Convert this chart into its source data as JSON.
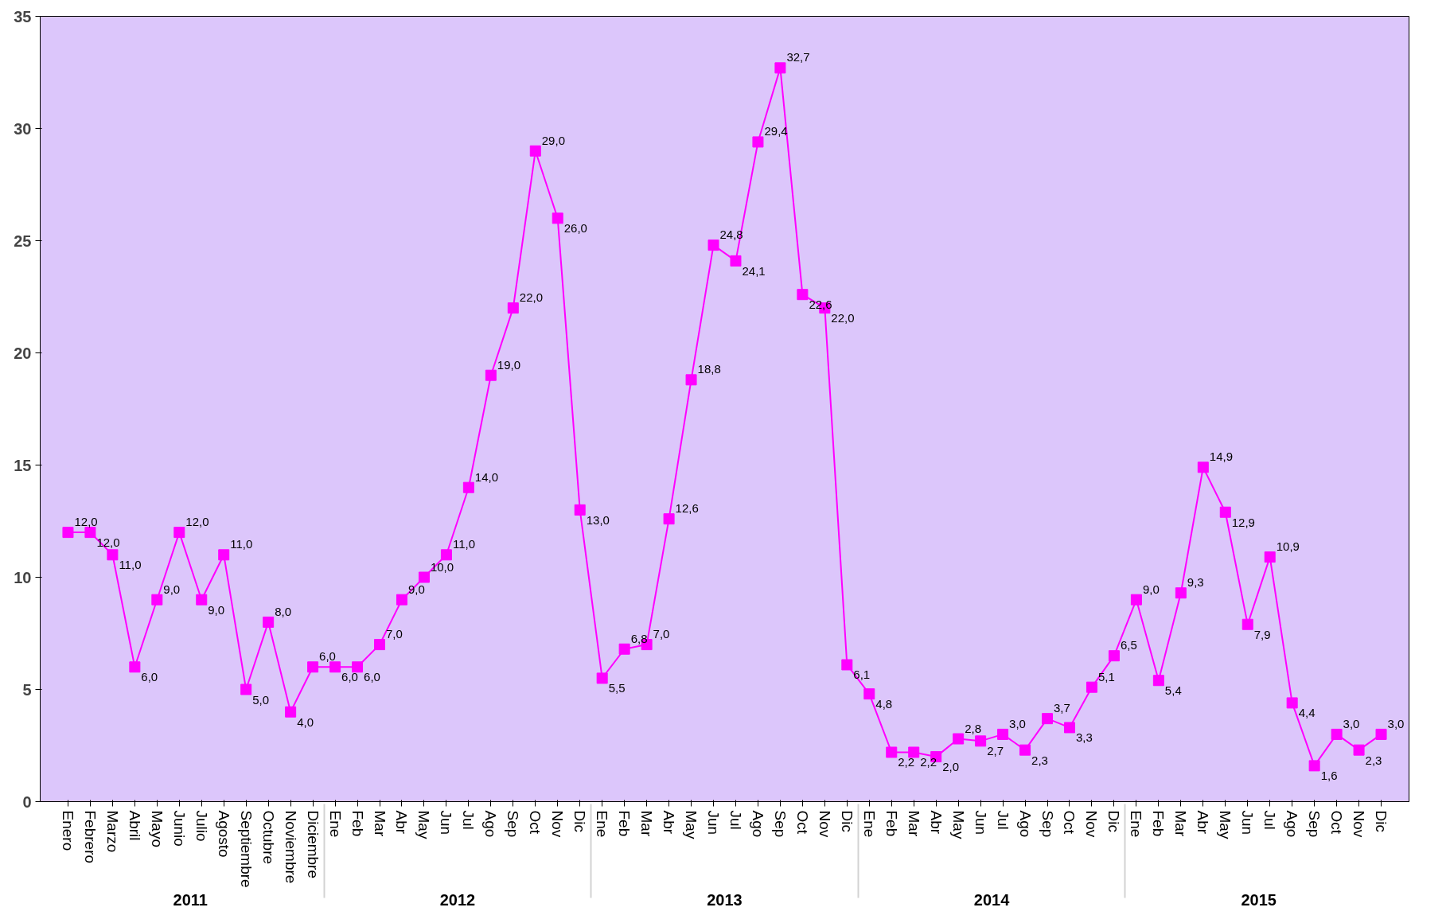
{
  "chart_data": {
    "type": "line",
    "categories": [
      "Enero",
      "Febrero",
      "Marzo",
      "Abril",
      "Mayo",
      "Junio",
      "Julio",
      "Agosto",
      "Septiembre",
      "Octubre",
      "Noviembre",
      "Diciembre",
      "Ene",
      "Feb",
      "Mar",
      "Abr",
      "May",
      "Jun",
      "Jul",
      "Ago",
      "Sep",
      "Oct",
      "Nov",
      "Dic",
      "Ene",
      "Feb",
      "Mar",
      "Abr",
      "May",
      "Jun",
      "Jul",
      "Ago",
      "Sep",
      "Oct",
      "Nov",
      "Dic",
      "Ene",
      "Feb",
      "Mar",
      "Abr",
      "May",
      "Jun",
      "Jul",
      "Ago",
      "Sep",
      "Oct",
      "Nov",
      "Dic",
      "Ene",
      "Feb",
      "Mar",
      "Abr",
      "May",
      "Jun",
      "Jul",
      "Ago",
      "Sep",
      "Oct",
      "Nov",
      "Dic"
    ],
    "series": [
      {
        "color": "#ff00ff",
        "values": [
          12.0,
          12.0,
          11.0,
          6.0,
          9.0,
          12.0,
          9.0,
          11.0,
          5.0,
          8.0,
          4.0,
          6.0,
          6.0,
          6.0,
          7.0,
          9.0,
          10.0,
          11.0,
          14.0,
          19.0,
          22.0,
          29.0,
          26.0,
          13.0,
          5.5,
          6.8,
          7.0,
          12.6,
          18.8,
          24.8,
          24.1,
          29.4,
          32.7,
          22.6,
          22.0,
          6.1,
          4.8,
          2.2,
          2.2,
          2.0,
          2.8,
          2.7,
          3.0,
          2.3,
          3.7,
          3.3,
          5.1,
          6.5,
          9.0,
          5.4,
          9.3,
          14.9,
          12.9,
          7.9,
          10.9,
          4.4,
          1.6,
          3.0,
          2.3,
          3.0
        ],
        "value_labels": [
          "12,0",
          "12,0",
          "11,0",
          "6,0",
          "9,0",
          "12,0",
          "9,0",
          "11,0",
          "5,0",
          "8,0",
          "4,0",
          "6,0",
          "6,0",
          "6,0",
          "7,0",
          "9,0",
          "10,0",
          "11,0",
          "14,0",
          "19,0",
          "22,0",
          "29,0",
          "26,0",
          "13,0",
          "5,5",
          "6,8",
          "7,0",
          "12,6",
          "18,8",
          "24,8",
          "24,1",
          "29,4",
          "32,7",
          "22,6",
          "22,0",
          "6,1",
          "4,8",
          "2,2",
          "2,2",
          "2,0",
          "2,8",
          "2,7",
          "3,0",
          "2,3",
          "3,7",
          "3,3",
          "5,1",
          "6,5",
          "9,0",
          "5,4",
          "9,3",
          "14,9",
          "12,9",
          "7,9",
          "10,9",
          "4,4",
          "1,6",
          "3,0",
          "2,3",
          "3,0"
        ]
      }
    ],
    "annotations": [
      "2011",
      "2012",
      "2013",
      "2014",
      "2015"
    ],
    "ylim": [
      0,
      35
    ],
    "yticks": [
      0,
      5,
      10,
      15,
      20,
      25,
      30,
      35
    ],
    "grid": false,
    "marker": "square",
    "line_style": "solid"
  }
}
